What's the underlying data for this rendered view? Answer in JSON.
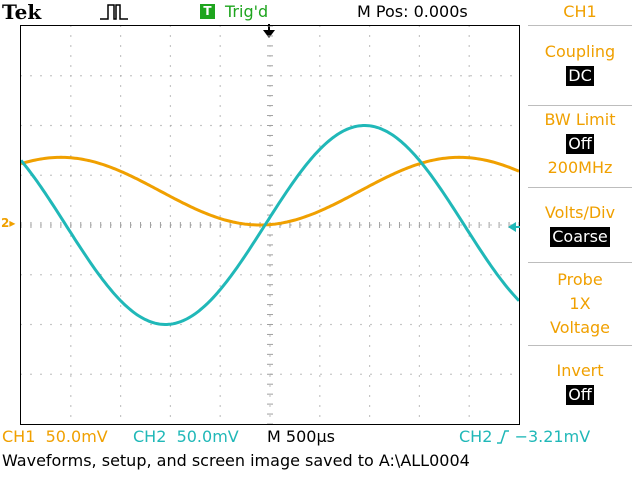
{
  "header": {
    "brand": "Tek",
    "trigger_badge": "T",
    "trigger_status": "Trig'd",
    "main_position": "M Pos: 0.000s"
  },
  "menu": {
    "title": "CH1",
    "coupling": {
      "label": "Coupling",
      "value": "DC"
    },
    "bw_limit": {
      "label": "BW Limit",
      "value": "Off",
      "extra": "200MHz"
    },
    "volts_div": {
      "label": "Volts/Div",
      "value": "Coarse"
    },
    "probe": {
      "label": "Probe",
      "value": "1X",
      "extra": "Voltage"
    },
    "invert": {
      "label": "Invert",
      "value": "Off"
    }
  },
  "status": {
    "ch1_label": "CH1",
    "ch1_scale": "50.0mV",
    "ch2_label": "CH2",
    "ch2_scale": "50.0mV",
    "timebase_label": "M",
    "timebase": "500µs",
    "trigger_source": "CH2",
    "trigger_level": "−3.21mV"
  },
  "message": "Waveforms, setup, and screen image saved to A:\\ALL0004",
  "markers": {
    "ch2_ground": "2"
  },
  "colors": {
    "ch1": "#f0a000",
    "ch2": "#20b8b8",
    "trigger": "#1ea51e",
    "grid": "#c8c8c8"
  },
  "chart_data": {
    "type": "line",
    "x_divisions": 10,
    "y_divisions": 8,
    "x_unit": "ms",
    "x_range": [
      -2.5,
      2.5
    ],
    "series": [
      {
        "name": "CH1",
        "color": "#f0a000",
        "volts_per_div": 0.05,
        "amplitude_div": 0.68,
        "offset_div": 0.68,
        "period_ms": 4.0,
        "min_at_ms": -0.1
      },
      {
        "name": "CH2",
        "color": "#20b8b8",
        "volts_per_div": 0.05,
        "amplitude_div": 2.0,
        "offset_div": 0.0,
        "period_ms": 4.0,
        "min_at_ms": -1.05
      }
    ]
  }
}
